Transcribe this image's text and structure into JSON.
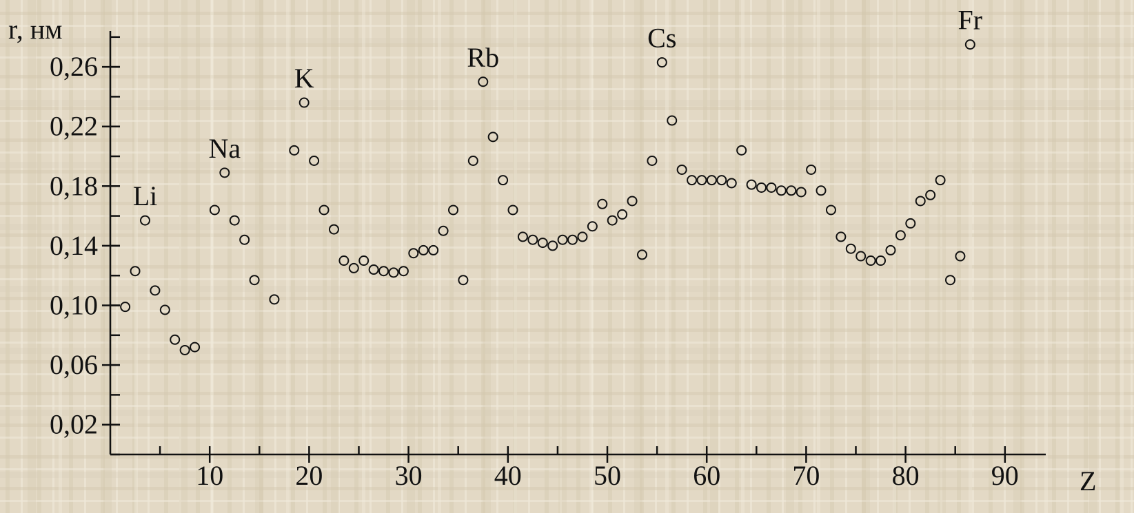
{
  "chart_data": {
    "type": "scatter",
    "title": "",
    "ylabel": "r, нм",
    "xlabel": "Z",
    "xlim": [
      0,
      96
    ],
    "ylim": [
      0,
      0.285
    ],
    "x_ticks": [
      10,
      20,
      30,
      40,
      50,
      60,
      70,
      80,
      90
    ],
    "y_ticks": [
      0.02,
      0.06,
      0.1,
      0.14,
      0.18,
      0.22,
      0.26
    ],
    "y_tick_labels": [
      "0,02",
      "0,06",
      "0,10",
      "0,14",
      "0,18",
      "0,22",
      "0,26"
    ],
    "grid": false,
    "legend": "none",
    "series": [
      {
        "x": [
          1,
          2,
          3,
          4,
          5,
          6,
          7,
          8,
          10,
          11,
          12,
          13,
          14,
          16,
          18,
          19,
          20,
          21,
          22,
          23,
          24,
          25,
          26,
          27,
          28,
          29,
          30,
          31,
          32,
          33,
          34,
          35,
          36,
          37,
          38,
          39,
          40,
          41,
          42,
          43,
          44,
          45,
          46,
          47,
          48,
          49,
          50,
          51,
          52,
          53,
          54,
          55,
          56,
          57,
          58,
          59,
          60,
          61,
          62,
          63,
          64,
          65,
          66,
          67,
          68,
          69,
          70,
          71,
          72,
          73,
          74,
          75,
          76,
          77,
          78,
          79,
          80,
          81,
          82,
          83,
          84,
          85,
          86
        ],
        "values": [
          0.099,
          0.123,
          0.157,
          0.11,
          0.097,
          0.077,
          0.07,
          0.072,
          0.164,
          0.189,
          0.157,
          0.144,
          0.117,
          0.104,
          0.204,
          0.236,
          0.197,
          0.164,
          0.151,
          0.13,
          0.125,
          0.13,
          0.124,
          0.123,
          0.122,
          0.123,
          0.135,
          0.137,
          0.137,
          0.15,
          0.164,
          0.117,
          0.197,
          0.25,
          0.213,
          0.184,
          0.164,
          0.146,
          0.144,
          0.142,
          0.14,
          0.144,
          0.144,
          0.146,
          0.153,
          0.168,
          0.157,
          0.161,
          0.17,
          0.134,
          0.197,
          0.263,
          0.224,
          0.191,
          0.184,
          0.184,
          0.184,
          0.184,
          0.182,
          0.204,
          0.181,
          0.179,
          0.179,
          0.177,
          0.177,
          0.176,
          0.191,
          0.177,
          0.164,
          0.146,
          0.138,
          0.133,
          0.13,
          0.13,
          0.137,
          0.147,
          0.155,
          0.17,
          0.174,
          0.184,
          0.117,
          0.133,
          0.275
        ]
      }
    ],
    "annotations": [
      {
        "text": "Li",
        "x": 3,
        "y": 0.157
      },
      {
        "text": "Na",
        "x": 11,
        "y": 0.189
      },
      {
        "text": "K",
        "x": 19,
        "y": 0.236
      },
      {
        "text": "Rb",
        "x": 37,
        "y": 0.25
      },
      {
        "text": "Cs",
        "x": 55,
        "y": 0.263
      },
      {
        "text": "Fr",
        "x": 86,
        "y": 0.275
      }
    ]
  }
}
